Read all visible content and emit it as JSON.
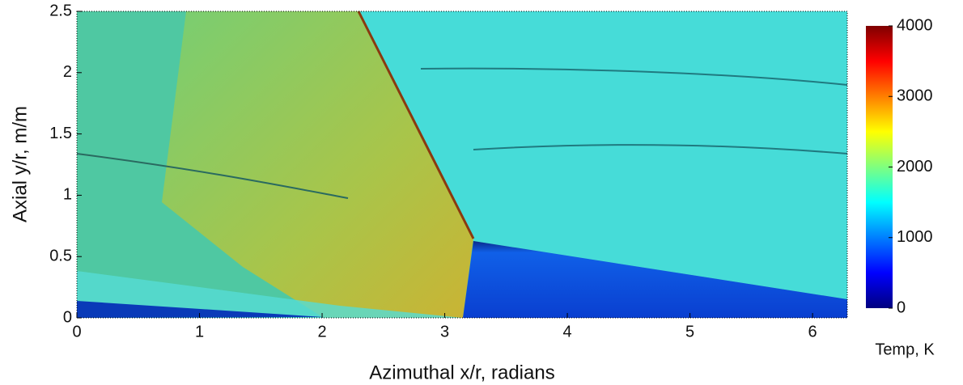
{
  "chart_data": {
    "type": "heatmap",
    "xlabel": "Azimuthal x/r, radians",
    "ylabel": "Axial y/r, m/m",
    "xlim": [
      0,
      6.283
    ],
    "xticks": [
      0,
      1,
      2,
      3,
      4,
      5,
      6
    ],
    "ylim": [
      0,
      2.5
    ],
    "yticks": [
      0,
      0.5,
      1,
      1.5,
      2,
      2.5
    ],
    "colorbar": {
      "label": "Temp, K",
      "lim": [
        0,
        4000
      ],
      "ticks": [
        0,
        1000,
        2000,
        3000,
        4000
      ],
      "colormap": "jet"
    }
  }
}
